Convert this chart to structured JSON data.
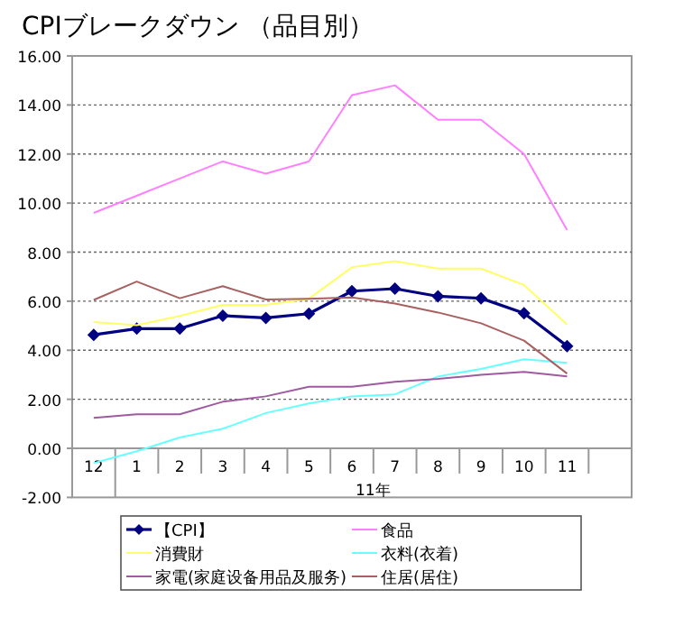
{
  "chart_data": {
    "type": "line",
    "title": "CPIブレークダウン （品目別）",
    "xlabel": "11年",
    "categories": [
      "12",
      "1",
      "2",
      "3",
      "4",
      "5",
      "6",
      "7",
      "8",
      "9",
      "10",
      "11",
      null
    ],
    "ylim": [
      -2,
      16
    ],
    "yticks": [
      {
        "value": -2,
        "label": "-2.00"
      },
      {
        "value": 0,
        "label": "0.00"
      },
      {
        "value": 2,
        "label": "2.00"
      },
      {
        "value": 4,
        "label": "4.00"
      },
      {
        "value": 6,
        "label": "6.00"
      },
      {
        "value": 8,
        "label": "8.00"
      },
      {
        "value": 10,
        "label": "10.00"
      },
      {
        "value": 12,
        "label": "12.00"
      },
      {
        "value": 14,
        "label": "14.00"
      },
      {
        "value": 16,
        "label": "16.00"
      }
    ],
    "grid": "y",
    "legend": "bottom",
    "series": [
      {
        "name": "【CPI】",
        "color": "#000080",
        "marker": "diamond",
        "values": [
          4.63,
          4.88,
          4.88,
          5.41,
          5.32,
          5.49,
          6.41,
          6.51,
          6.2,
          6.12,
          5.51,
          4.17,
          null
        ]
      },
      {
        "name": "食品",
        "color": "#ff80ff",
        "marker": "none",
        "values": [
          9.6,
          10.3,
          11.0,
          11.7,
          11.2,
          11.7,
          14.4,
          14.8,
          13.4,
          13.4,
          12.0,
          8.9,
          null
        ]
      },
      {
        "name": "消費財",
        "color": "#ffff66",
        "marker": "none",
        "values": [
          5.15,
          5.02,
          5.4,
          5.85,
          5.85,
          6.1,
          7.38,
          7.63,
          7.33,
          7.33,
          6.66,
          5.05,
          null
        ]
      },
      {
        "name": "衣料(衣着)",
        "color": "#66ffff",
        "marker": "none",
        "values": [
          -0.6,
          -0.12,
          0.44,
          0.8,
          1.44,
          1.83,
          2.12,
          2.2,
          2.93,
          3.24,
          3.63,
          3.49,
          null
        ]
      },
      {
        "name": "家電(家庭设备用品及服务)",
        "color": "#a05aa0",
        "marker": "none",
        "values": [
          1.24,
          1.39,
          1.39,
          1.9,
          2.12,
          2.51,
          2.51,
          2.71,
          2.83,
          3.0,
          3.12,
          2.93,
          null
        ]
      },
      {
        "name": "住居(居住)",
        "color": "#a86060",
        "marker": "none",
        "values": [
          6.05,
          6.8,
          6.12,
          6.61,
          6.07,
          6.1,
          6.15,
          5.9,
          5.54,
          5.1,
          4.39,
          3.05,
          null
        ]
      }
    ]
  }
}
